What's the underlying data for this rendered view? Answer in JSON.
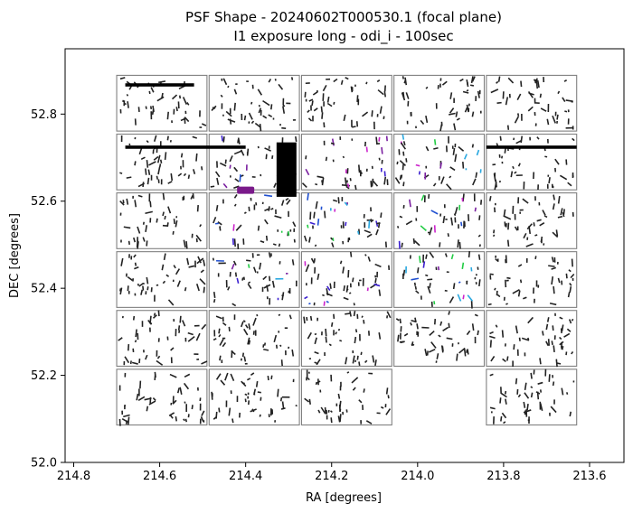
{
  "chart_data": {
    "type": "scatter",
    "title_lines": [
      "PSF Shape - 20240602T000530.1 (focal plane)",
      "I1 exposure long - odi_i - 100sec"
    ],
    "xlabel": "RA [degrees]",
    "ylabel": "DEC [degrees]",
    "xlim": [
      214.82,
      213.52
    ],
    "ylim": [
      52.0,
      52.95
    ],
    "x_inverted": true,
    "x_ticks": [
      214.8,
      214.6,
      214.4,
      214.2,
      214.0,
      213.8,
      213.6
    ],
    "x_tick_labels": [
      "214.8",
      "214.6",
      "214.4",
      "214.2",
      "214.0",
      "213.8",
      "213.6"
    ],
    "y_ticks": [
      52.0,
      52.2,
      52.4,
      52.6,
      52.8
    ],
    "y_tick_labels": [
      "52.0",
      "52.2",
      "52.4",
      "52.6",
      "52.8"
    ],
    "grid": false,
    "legend": "none",
    "ota_grid": {
      "columns_ra_centers": [
        214.595,
        214.38,
        214.165,
        213.95,
        213.735
      ],
      "rows_dec_centers": [
        52.825,
        52.69,
        52.555,
        52.42,
        52.285,
        52.15
      ],
      "ra_width": 0.21,
      "dec_height": 0.128,
      "missing": [
        [
          5,
          3
        ]
      ]
    },
    "marker_colors": {
      "default": "#222222",
      "accent": [
        "#1f4fd0",
        "#2aa8e0",
        "#22cc44",
        "#7a1fa0",
        "#cc22cc",
        "#3a1fd0"
      ]
    },
    "highlight_features": [
      {
        "kind": "saturated-column",
        "ra": 214.305,
        "dec_range": [
          52.61,
          52.735
        ],
        "color": "#000000"
      },
      {
        "kind": "saturated-blob",
        "ra_range": [
          214.42,
          214.38
        ],
        "dec": 52.625,
        "color": "#7a1a8a"
      },
      {
        "kind": "saturated-band",
        "ra_range": [
          214.68,
          214.52
        ],
        "dec": 52.867,
        "color": "#000000"
      },
      {
        "kind": "saturated-band",
        "ra_range": [
          214.68,
          214.4
        ],
        "dec": 52.724,
        "color": "#000000"
      },
      {
        "kind": "saturated-band",
        "ra_range": [
          213.84,
          213.63
        ],
        "dec": 52.724,
        "color": "#000000"
      }
    ]
  }
}
